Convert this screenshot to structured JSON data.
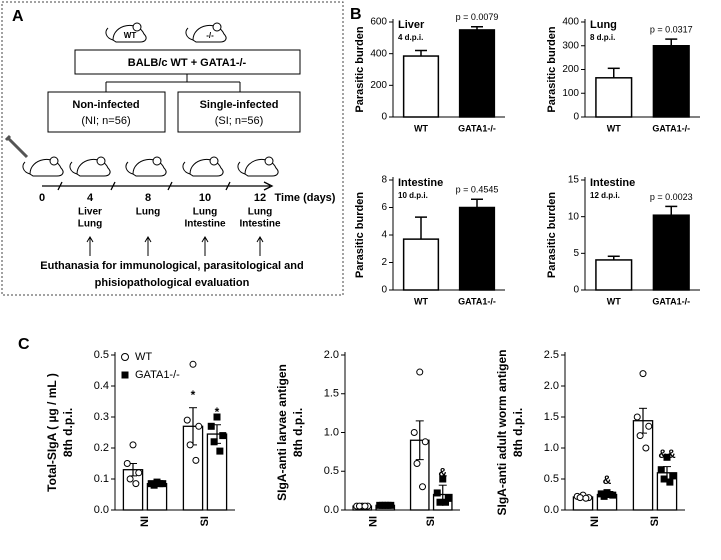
{
  "panel_a": {
    "label": "A",
    "mice": [
      "WT",
      "-/-"
    ],
    "strain": "BALB/c WT + GATA1-/-",
    "groups": [
      {
        "name": "Non-infected",
        "detail": "(NI; n=56)"
      },
      {
        "name": "Single-infected",
        "detail": "(SI; n=56)"
      }
    ],
    "timeline": {
      "days": [
        "0",
        "4",
        "8",
        "10",
        "12"
      ],
      "unit": "Time (days)",
      "organs": [
        [
          "Liver",
          "Lung"
        ],
        [
          "Lung"
        ],
        [
          "Lung",
          "Intestine"
        ],
        [
          "Lung",
          "Intestine"
        ]
      ]
    },
    "footer": [
      "Euthanasia for immunological, parasitological and",
      "phisiopathological evaluation"
    ]
  },
  "panel_b": {
    "label": "B"
  },
  "panel_c": {
    "label": "C"
  },
  "chart_data": [
    {
      "type": "bar",
      "title": "Liver",
      "subtitle": "4 d.p.i.",
      "ylabel": "Parasitic burden",
      "categories": [
        "WT",
        "GATA1-/-"
      ],
      "values": [
        385,
        550
      ],
      "errors": [
        35,
        20
      ],
      "colors": [
        "#ffffff",
        "#000000"
      ],
      "annotation": "p = 0.0079",
      "ylim": [
        0,
        600
      ],
      "yticks": [
        0,
        200,
        400,
        600
      ]
    },
    {
      "type": "bar",
      "title": "Lung",
      "subtitle": "8 d.p.i.",
      "ylabel": "Parasitic burden",
      "categories": [
        "WT",
        "GATA1-/-"
      ],
      "values": [
        165,
        300
      ],
      "errors": [
        40,
        28
      ],
      "colors": [
        "#ffffff",
        "#000000"
      ],
      "annotation": "p = 0.0317",
      "ylim": [
        0,
        400
      ],
      "yticks": [
        0,
        100,
        200,
        300,
        400
      ]
    },
    {
      "type": "bar",
      "title": "Intestine",
      "subtitle": "10 d.p.i.",
      "ylabel": "Parasitic burden",
      "categories": [
        "WT",
        "GATA1-/-"
      ],
      "values": [
        3.7,
        6.0
      ],
      "errors": [
        1.6,
        0.6
      ],
      "colors": [
        "#ffffff",
        "#000000"
      ],
      "annotation": "p = 0.4545",
      "ylim": [
        0,
        8
      ],
      "yticks": [
        0,
        2,
        4,
        6,
        8
      ]
    },
    {
      "type": "bar",
      "title": "Intestine",
      "subtitle": "12 d.p.i.",
      "ylabel": "Parasitic burden",
      "categories": [
        "WT",
        "GATA1-/-"
      ],
      "values": [
        4.1,
        10.2
      ],
      "errors": [
        0.5,
        1.2
      ],
      "colors": [
        "#ffffff",
        "#000000"
      ],
      "annotation": "p = 0.0023",
      "ylim": [
        0,
        15
      ],
      "yticks": [
        0,
        5,
        10,
        15
      ]
    },
    {
      "type": "bar",
      "ylabel": [
        "Total-SIgA ( µg / mL )",
        "8th d.p.i."
      ],
      "categories": [
        "NI",
        "SI"
      ],
      "bar_color": "#ffffff",
      "legend": "upper left",
      "series": [
        {
          "name": "WT",
          "color": "#ffffff",
          "marker": "circle",
          "values": [
            0.13,
            0.27
          ],
          "errors": [
            0.02,
            0.06
          ],
          "points": [
            [
              0.21,
              0.15,
              0.12,
              0.1,
              0.085
            ],
            [
              0.47,
              0.29,
              0.27,
              0.21,
              0.16
            ]
          ],
          "annotations": [
            null,
            "*"
          ]
        },
        {
          "name": "GATA1-/-",
          "color": "#000000",
          "marker": "square",
          "values": [
            0.085,
            0.245
          ],
          "errors": [
            0.005,
            0.03
          ],
          "points": [
            [
              0.09,
              0.085,
              0.085,
              0.08,
              0.085
            ],
            [
              0.3,
              0.27,
              0.24,
              0.22,
              0.19
            ]
          ],
          "annotations": [
            null,
            "*"
          ]
        }
      ],
      "ylim": [
        0,
        0.5
      ],
      "yticks": [
        {
          "value": 0,
          "label": "0.0"
        },
        0.1,
        0.2,
        0.3,
        0.4,
        0.5
      ]
    },
    {
      "type": "bar",
      "ylabel": [
        "SIgA-anti larvae antigen",
        "8th d.p.i."
      ],
      "categories": [
        "NI",
        "SI"
      ],
      "bar_color": "#ffffff",
      "series": [
        {
          "color": "#ffffff",
          "marker": "circle",
          "values": [
            0.05,
            0.9
          ],
          "errors": [
            0.005,
            0.25
          ],
          "points": [
            [
              0.05,
              0.05,
              0.05,
              0.05,
              0.05
            ],
            [
              1.78,
              1.0,
              0.88,
              0.6,
              0.3
            ]
          ]
        },
        {
          "color": "#000000",
          "marker": "square",
          "values": [
            0.06,
            0.2
          ],
          "errors": [
            0.005,
            0.12
          ],
          "points": [
            [
              0.06,
              0.06,
              0.06,
              0.06,
              0.06
            ],
            [
              0.4,
              0.22,
              0.15,
              0.1,
              0.1
            ]
          ],
          "annotations": [
            null,
            "&"
          ]
        }
      ],
      "ylim": [
        0,
        2
      ],
      "yticks": [
        {
          "value": 0,
          "label": "0.0"
        },
        0.5,
        {
          "value": 1,
          "label": "1.0"
        },
        1.5,
        {
          "value": 2,
          "label": "2.0"
        }
      ]
    },
    {
      "type": "bar",
      "ylabel": [
        "SIgA-anti adult worm antigen",
        "8th d.p.i."
      ],
      "categories": [
        "NI",
        "SI"
      ],
      "bar_color": "#ffffff",
      "series": [
        {
          "color": "#ffffff",
          "marker": "circle",
          "values": [
            0.21,
            1.44
          ],
          "errors": [
            0.02,
            0.2
          ],
          "points": [
            [
              0.24,
              0.22,
              0.2,
              0.2,
              0.19
            ],
            [
              2.2,
              1.5,
              1.35,
              1.2,
              1.0
            ]
          ]
        },
        {
          "color": "#000000",
          "marker": "square",
          "values": [
            0.25,
            0.6
          ],
          "errors": [
            0.03,
            0.1
          ],
          "points": [
            [
              0.28,
              0.26,
              0.24,
              0.22,
              0.25
            ],
            [
              0.85,
              0.65,
              0.55,
              0.5,
              0.45
            ]
          ],
          "annotations": [
            "&",
            "&&"
          ]
        }
      ],
      "ylim": [
        0,
        2.5
      ],
      "yticks": [
        {
          "value": 0,
          "label": "0.0"
        },
        0.5,
        {
          "value": 1,
          "label": "1.0"
        },
        1.5,
        {
          "value": 2,
          "label": "2.0"
        },
        2.5
      ]
    }
  ]
}
